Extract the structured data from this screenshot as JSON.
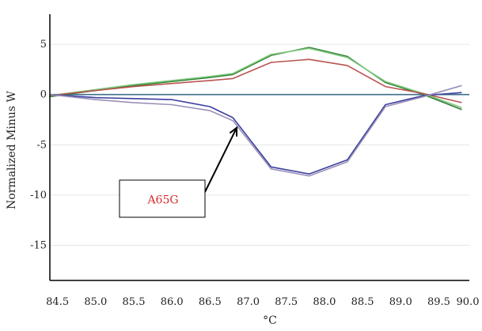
{
  "chart_data": {
    "type": "line",
    "xlabel": "°C",
    "ylabel": "Normalized Minus W",
    "xlim": [
      84.4,
      89.9
    ],
    "ylim": [
      -18.5,
      8.0
    ],
    "x_ticks": [
      "84.5",
      "85.0",
      "85.5",
      "86.0",
      "86.5",
      "87.0",
      "87.5",
      "88.0",
      "88.5",
      "89.0",
      "89.5",
      "90.0"
    ],
    "y_ticks": [
      "5",
      "0",
      "-5",
      "-10",
      "-15"
    ],
    "y_tick_values": [
      5,
      0,
      -5,
      -10,
      -15
    ],
    "grid": "horizontal",
    "baseline": 0,
    "series": [
      {
        "color": "#2e7d32",
        "x": [
          84.4,
          85.0,
          85.5,
          86.0,
          86.5,
          86.8,
          87.3,
          87.8,
          88.3,
          88.8,
          89.3,
          89.8
        ],
        "y": [
          -0.2,
          0.4,
          0.9,
          1.3,
          1.7,
          2.0,
          3.9,
          4.7,
          3.8,
          1.2,
          0.0,
          -1.5
        ]
      },
      {
        "color": "#7ec87e",
        "x": [
          84.4,
          85.0,
          85.5,
          86.0,
          86.5,
          86.8,
          87.3,
          87.8,
          88.3,
          88.8,
          89.3,
          89.8
        ],
        "y": [
          -0.1,
          0.5,
          1.0,
          1.4,
          1.8,
          2.1,
          4.0,
          4.6,
          3.7,
          1.3,
          0.1,
          -1.3
        ]
      },
      {
        "color": "#b85450",
        "x": [
          84.4,
          85.0,
          85.5,
          86.0,
          86.5,
          86.8,
          87.3,
          87.8,
          88.3,
          88.8,
          89.3,
          89.8
        ],
        "y": [
          -0.1,
          0.4,
          0.8,
          1.1,
          1.4,
          1.6,
          3.2,
          3.5,
          2.9,
          0.8,
          0.1,
          -0.8
        ]
      },
      {
        "color": "#3a3f9e",
        "x": [
          84.4,
          85.0,
          85.5,
          86.0,
          86.5,
          86.8,
          87.3,
          87.8,
          88.3,
          88.8,
          89.3,
          89.8
        ],
        "y": [
          0.0,
          -0.3,
          -0.4,
          -0.5,
          -1.2,
          -2.3,
          -7.2,
          -7.9,
          -6.5,
          -1.0,
          -0.1,
          0.2
        ]
      },
      {
        "color": "#9a8fb8",
        "x": [
          84.4,
          85.0,
          85.5,
          86.0,
          86.5,
          86.8,
          87.3,
          87.8,
          88.3,
          88.8,
          89.3,
          89.8
        ],
        "y": [
          0.0,
          -0.5,
          -0.8,
          -1.0,
          -1.6,
          -2.6,
          -7.4,
          -8.1,
          -6.7,
          -1.2,
          -0.2,
          0.9
        ]
      }
    ],
    "annotations": [
      {
        "text": "A65G",
        "color": "#d32f2f",
        "arrow_to": [
          86.85,
          -3.3
        ]
      }
    ]
  }
}
